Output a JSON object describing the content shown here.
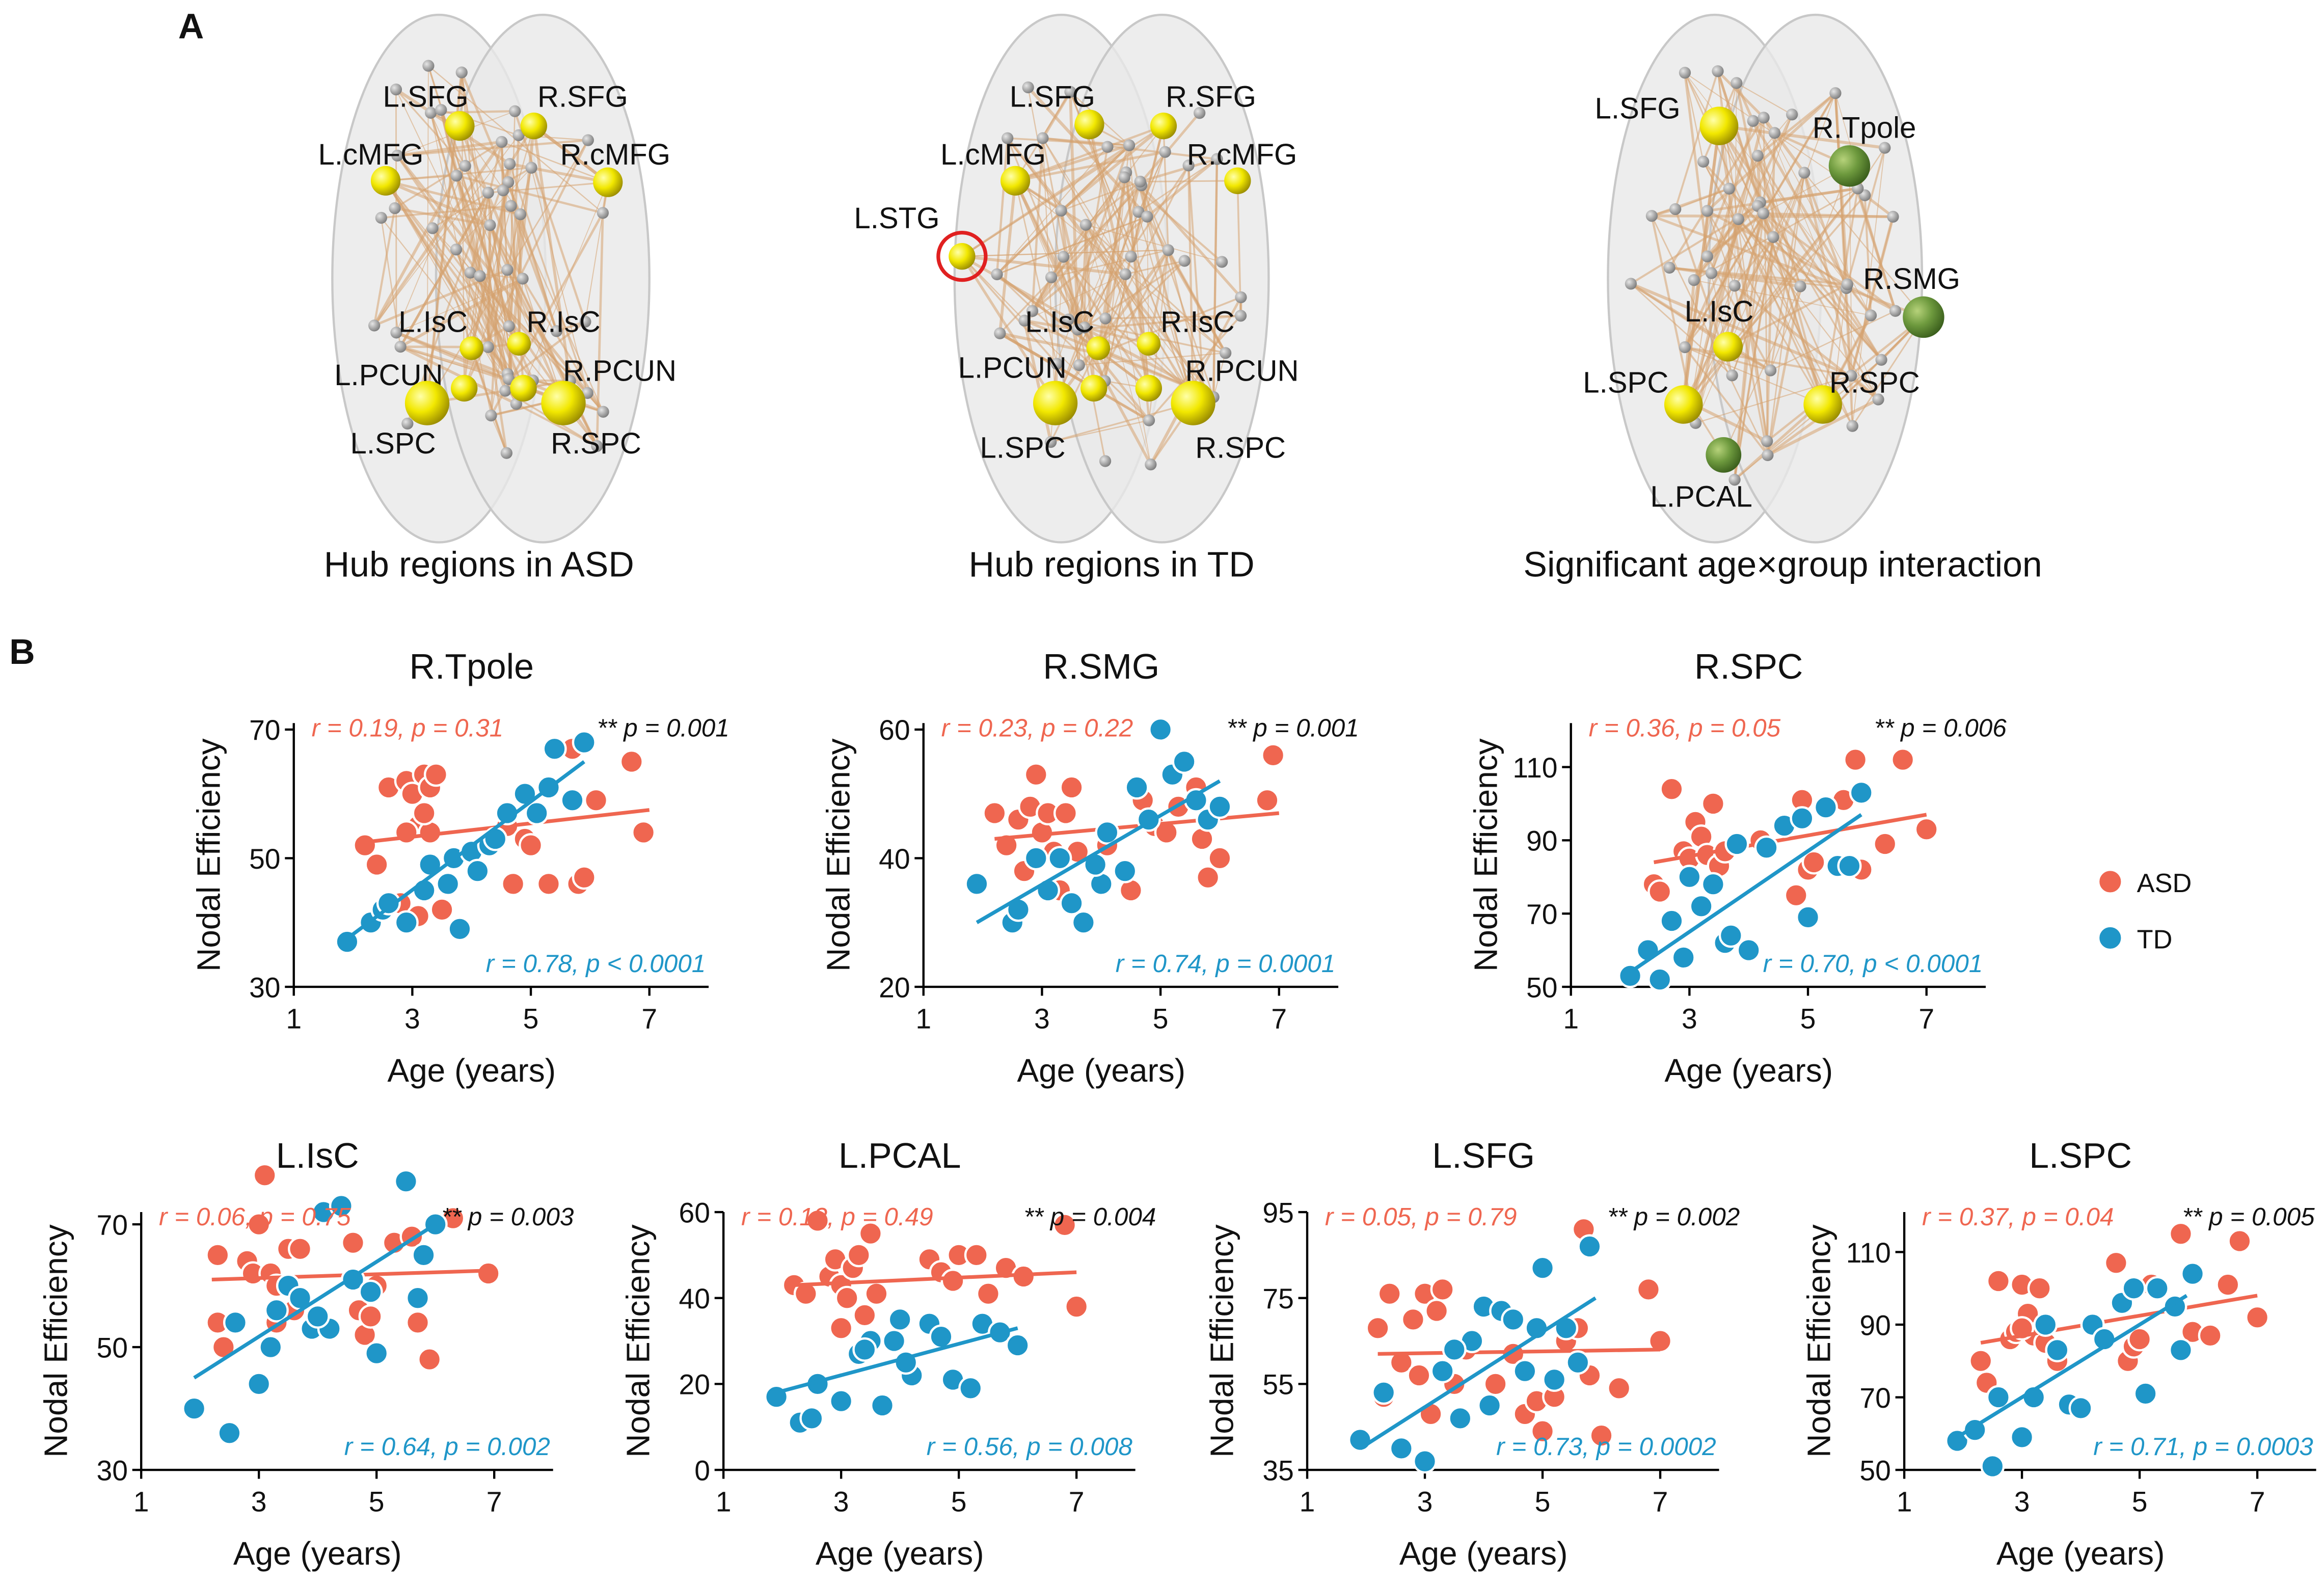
{
  "panels": {
    "a_label": "A",
    "b_label": "B"
  },
  "brains": [
    {
      "caption": "Hub regions in ASD",
      "nodes": [
        "L.SFG",
        "R.SFG",
        "L.cMFG",
        "R.cMFG",
        "L.IsC",
        "R.IsC",
        "L.PCUN",
        "R.PCUN",
        "L.SPC",
        "R.SPC"
      ]
    },
    {
      "caption": "Hub regions in TD",
      "nodes": [
        "L.SFG",
        "R.SFG",
        "L.cMFG",
        "R.cMFG",
        "L.STG",
        "L.IsC",
        "R.IsC",
        "L.PCUN",
        "R.PCUN",
        "L.SPC",
        "R.SPC"
      ]
    },
    {
      "caption": "Significant age×group interaction",
      "nodes": [
        "L.SFG",
        "R.Tpole",
        "R.SMG",
        "L.IsC",
        "L.SPC",
        "R.SPC",
        "L.PCAL"
      ]
    }
  ],
  "chart_data": [
    {
      "type": "scatter",
      "title": "R.Tpole",
      "xlabel": "Age (years)",
      "ylabel": "Nodal Efficiency",
      "xlim": [
        1,
        8
      ],
      "xticks": [
        1,
        3,
        5,
        7
      ],
      "ylim": [
        30,
        71
      ],
      "yticks": [
        30,
        50,
        70
      ],
      "interaction": "** p = 0.001",
      "series": [
        {
          "color": "#ef6650",
          "stat": "r = 0.19, p = 0.31",
          "x": [
            2.2,
            2.4,
            2.6,
            2.9,
            3.0,
            3.1,
            3.2,
            3.3,
            3.4,
            2.9,
            3.3,
            2.8,
            3.5,
            4.6,
            4.7,
            4.9,
            5.0,
            5.3,
            5.7,
            5.8,
            6.1,
            6.7,
            6.9,
            3.1,
            3.2,
            5.9
          ],
          "values": [
            52,
            49,
            61,
            62,
            60,
            55,
            63,
            61,
            63,
            54,
            54,
            43,
            42,
            55,
            46,
            53,
            52,
            46,
            67,
            46,
            59,
            65,
            54,
            41,
            57,
            47
          ],
          "fit_x": [
            2.2,
            7.0
          ],
          "fit_y": [
            52.5,
            57.5
          ]
        },
        {
          "color": "#1f96c8",
          "stat": "r = 0.78, p < 0.0001",
          "x": [
            1.9,
            2.3,
            2.5,
            2.6,
            2.9,
            3.2,
            3.6,
            3.7,
            3.8,
            4.0,
            4.3,
            4.4,
            4.6,
            4.9,
            5.1,
            5.3,
            5.4,
            5.7,
            5.9,
            3.3,
            4.1
          ],
          "values": [
            37,
            40,
            42,
            43,
            40,
            45,
            46,
            50,
            39,
            51,
            52,
            53,
            57,
            60,
            57,
            61,
            67,
            59,
            68,
            49,
            48
          ],
          "fit_x": [
            1.9,
            5.9
          ],
          "fit_y": [
            37.5,
            65
          ]
        }
      ]
    },
    {
      "type": "scatter",
      "title": "R.SMG",
      "xlabel": "Age (years)",
      "ylabel": "Nodal Efficiency",
      "xlim": [
        1,
        8
      ],
      "xticks": [
        1,
        3,
        5,
        7
      ],
      "ylim": [
        20,
        61
      ],
      "yticks": [
        20,
        40,
        60
      ],
      "interaction": "** p = 0.001",
      "series": [
        {
          "color": "#ef6650",
          "stat": "r = 0.23, p = 0.22",
          "x": [
            2.2,
            2.4,
            2.6,
            2.8,
            2.9,
            3.0,
            3.1,
            3.2,
            3.3,
            3.5,
            3.6,
            4.1,
            4.5,
            4.7,
            4.9,
            5.1,
            5.3,
            5.6,
            5.7,
            5.8,
            6.0,
            6.8,
            6.9,
            2.7,
            3.4
          ],
          "values": [
            47,
            42,
            46,
            48,
            53,
            44,
            47,
            41,
            35,
            51,
            41,
            42,
            35,
            49,
            45,
            44,
            48,
            51,
            43,
            37,
            40,
            49,
            56,
            38,
            47
          ],
          "fit_x": [
            2.2,
            7.0
          ],
          "fit_y": [
            43,
            47
          ]
        },
        {
          "color": "#1f96c8",
          "stat": "r = 0.74, p = 0.0001",
          "x": [
            1.9,
            2.5,
            2.6,
            2.9,
            3.1,
            3.3,
            3.5,
            3.7,
            4.0,
            4.1,
            4.4,
            4.6,
            4.8,
            5.0,
            5.2,
            5.4,
            5.6,
            5.8,
            6.0,
            3.9
          ],
          "values": [
            36,
            30,
            32,
            40,
            35,
            40,
            33,
            30,
            36,
            44,
            38,
            51,
            46,
            60,
            53,
            55,
            49,
            46,
            48,
            39
          ],
          "fit_x": [
            1.9,
            6.0
          ],
          "fit_y": [
            30,
            52
          ]
        }
      ]
    },
    {
      "type": "scatter",
      "title": "R.SPC",
      "xlabel": "Age (years)",
      "ylabel": "Nodal Efficiency",
      "xlim": [
        1,
        8
      ],
      "xticks": [
        1,
        3,
        5,
        7
      ],
      "ylim": [
        50,
        122
      ],
      "yticks": [
        50,
        70,
        90,
        110
      ],
      "interaction": "** p = 0.006",
      "legend": "right",
      "series": [
        {
          "name": "ASD",
          "color": "#ef6650",
          "stat": "r = 0.36, p = 0.05",
          "x": [
            2.4,
            2.5,
            2.7,
            2.9,
            3.0,
            3.1,
            3.2,
            3.3,
            3.4,
            3.5,
            3.6,
            4.2,
            4.8,
            4.9,
            5.0,
            5.1,
            5.6,
            5.8,
            5.9,
            6.3,
            6.6,
            7.0,
            3.0
          ],
          "values": [
            78,
            76,
            104,
            87,
            85,
            95,
            91,
            86,
            100,
            83,
            87,
            90,
            75,
            101,
            82,
            84,
            101,
            112,
            82,
            89,
            112,
            93,
            80
          ],
          "fit_x": [
            2.4,
            7.0
          ],
          "fit_y": [
            84,
            97
          ]
        },
        {
          "name": "TD",
          "color": "#1f96c8",
          "stat": "r = 0.70, p < 0.0001",
          "x": [
            2.0,
            2.3,
            2.5,
            2.7,
            2.9,
            3.0,
            3.2,
            3.4,
            3.6,
            3.7,
            3.8,
            4.0,
            4.3,
            4.6,
            4.9,
            5.0,
            5.3,
            5.5,
            5.7,
            5.9
          ],
          "values": [
            53,
            60,
            52,
            68,
            58,
            80,
            72,
            78,
            62,
            64,
            89,
            60,
            88,
            94,
            96,
            69,
            99,
            83,
            83,
            103
          ],
          "fit_x": [
            2.0,
            5.9
          ],
          "fit_y": [
            54,
            97
          ]
        }
      ]
    },
    {
      "type": "scatter",
      "title": "L.IsC",
      "xlabel": "Age (years)",
      "ylabel": "Nodal Efficiency",
      "xlim": [
        1,
        8
      ],
      "xticks": [
        1,
        3,
        5,
        7
      ],
      "ylim": [
        30,
        72
      ],
      "yticks": [
        30,
        50,
        70
      ],
      "interaction": "** p = 0.003",
      "series": [
        {
          "color": "#ef6650",
          "stat": "r = 0.06, p = 0.75",
          "x": [
            2.3,
            2.3,
            2.4,
            2.8,
            2.9,
            3.0,
            3.1,
            3.2,
            3.3,
            3.5,
            3.6,
            3.3,
            4.6,
            4.7,
            4.8,
            4.9,
            5.0,
            5.3,
            5.6,
            5.7,
            5.9,
            6.3,
            6.9,
            3.7
          ],
          "values": [
            65,
            54,
            50,
            64,
            62,
            70,
            78,
            62,
            60,
            66,
            56,
            54,
            67,
            56,
            52,
            55,
            60,
            67,
            68,
            54,
            48,
            71,
            62,
            66
          ],
          "fit_x": [
            2.2,
            7.0
          ],
          "fit_y": [
            61,
            62.5
          ]
        },
        {
          "color": "#1f96c8",
          "stat": "r = 0.64, p = 0.002",
          "x": [
            1.9,
            2.5,
            2.6,
            3.0,
            3.3,
            3.5,
            3.7,
            3.9,
            4.1,
            4.2,
            4.4,
            4.6,
            4.9,
            5.0,
            5.5,
            5.7,
            5.8,
            6.0,
            3.2,
            4.0
          ],
          "values": [
            40,
            36,
            54,
            44,
            56,
            60,
            58,
            53,
            72,
            53,
            73,
            61,
            59,
            49,
            77,
            58,
            65,
            70,
            50,
            55
          ],
          "fit_x": [
            1.9,
            6.0
          ],
          "fit_y": [
            45,
            70
          ]
        }
      ]
    },
    {
      "type": "scatter",
      "title": "L.PCAL",
      "xlabel": "Age (years)",
      "ylabel": "Nodal Efficiency",
      "xlim": [
        1,
        8
      ],
      "xticks": [
        1,
        3,
        5,
        7
      ],
      "ylim": [
        0,
        60
      ],
      "yticks": [
        0,
        20,
        40,
        60
      ],
      "interaction": "** p = 0.004",
      "series": [
        {
          "color": "#ef6650",
          "stat": "r = 0.13, p = 0.49",
          "x": [
            2.2,
            2.4,
            2.6,
            2.8,
            2.9,
            3.0,
            3.1,
            3.2,
            3.3,
            3.5,
            3.4,
            4.5,
            4.7,
            4.9,
            5.0,
            5.3,
            5.5,
            5.8,
            6.1,
            6.8,
            7.0,
            3.0,
            3.6
          ],
          "values": [
            43,
            41,
            58,
            45,
            49,
            43,
            40,
            47,
            50,
            55,
            36,
            49,
            46,
            44,
            50,
            50,
            41,
            47,
            45,
            57,
            38,
            33,
            41
          ],
          "fit_x": [
            2.2,
            7.0
          ],
          "fit_y": [
            43,
            46
          ]
        },
        {
          "color": "#1f96c8",
          "stat": "r = 0.56, p = 0.008",
          "x": [
            1.9,
            2.3,
            2.5,
            2.6,
            3.0,
            3.3,
            3.5,
            3.7,
            3.9,
            4.0,
            4.2,
            4.5,
            4.7,
            4.9,
            5.2,
            5.4,
            5.7,
            6.0,
            3.4,
            4.1
          ],
          "values": [
            17,
            11,
            12,
            20,
            16,
            27,
            30,
            15,
            30,
            35,
            22,
            34,
            31,
            21,
            19,
            34,
            32,
            29,
            28,
            25
          ],
          "fit_x": [
            1.9,
            6.0
          ],
          "fit_y": [
            18,
            33
          ]
        }
      ]
    },
    {
      "type": "scatter",
      "title": "L.SFG",
      "xlabel": "Age (years)",
      "ylabel": "Nodal Efficiency",
      "xlim": [
        1,
        8
      ],
      "xticks": [
        1,
        3,
        5,
        7
      ],
      "ylim": [
        35,
        95
      ],
      "yticks": [
        35,
        55,
        75,
        95
      ],
      "interaction": "** p = 0.002",
      "series": [
        {
          "color": "#ef6650",
          "stat": "r = 0.05, p = 0.79",
          "x": [
            2.2,
            2.3,
            2.4,
            2.6,
            2.8,
            2.9,
            3.0,
            3.1,
            3.2,
            3.3,
            3.5,
            3.7,
            4.2,
            4.5,
            4.7,
            4.9,
            5.0,
            5.2,
            5.4,
            5.6,
            5.7,
            5.8,
            6.0,
            6.3,
            6.8,
            7.0
          ],
          "values": [
            68,
            52,
            76,
            60,
            70,
            57,
            76,
            48,
            72,
            77,
            55,
            63,
            55,
            62,
            48,
            51,
            44,
            52,
            65,
            68,
            91,
            57,
            43,
            54,
            77,
            65
          ],
          "fit_x": [
            2.2,
            7.0
          ],
          "fit_y": [
            62,
            63
          ]
        },
        {
          "color": "#1f96c8",
          "stat": "r = 0.73, p = 0.0002",
          "x": [
            1.9,
            2.3,
            2.6,
            3.0,
            3.3,
            3.6,
            3.8,
            4.0,
            4.3,
            4.5,
            4.7,
            4.9,
            5.0,
            5.2,
            5.4,
            5.6,
            5.8,
            4.1,
            3.5
          ],
          "values": [
            42,
            53,
            40,
            37,
            58,
            47,
            65,
            73,
            72,
            70,
            58,
            68,
            82,
            56,
            68,
            60,
            87,
            50,
            63
          ],
          "fit_x": [
            1.9,
            5.9
          ],
          "fit_y": [
            40,
            75
          ]
        }
      ]
    },
    {
      "type": "scatter",
      "title": "L.SPC",
      "xlabel": "Age (years)",
      "ylabel": "Nodal Efficiency",
      "xlim": [
        1,
        8
      ],
      "xticks": [
        1,
        3,
        5,
        7
      ],
      "ylim": [
        50,
        121
      ],
      "yticks": [
        50,
        70,
        90,
        110
      ],
      "interaction": "** p = 0.005",
      "series": [
        {
          "color": "#ef6650",
          "stat": "r = 0.37, p = 0.04",
          "x": [
            2.3,
            2.4,
            2.6,
            2.8,
            2.9,
            3.0,
            3.1,
            3.2,
            3.3,
            3.4,
            3.6,
            4.6,
            4.8,
            4.9,
            5.0,
            5.2,
            5.7,
            5.9,
            6.2,
            6.5,
            6.7,
            7.0,
            3.0
          ],
          "values": [
            80,
            74,
            102,
            86,
            88,
            101,
            93,
            87,
            100,
            85,
            80,
            107,
            80,
            84,
            86,
            101,
            115,
            88,
            87,
            101,
            113,
            92,
            89
          ],
          "fit_x": [
            2.3,
            7.0
          ],
          "fit_y": [
            85,
            98
          ]
        },
        {
          "color": "#1f96c8",
          "stat": "r = 0.71, p = 0.0003",
          "x": [
            1.9,
            2.2,
            2.5,
            2.6,
            3.0,
            3.2,
            3.4,
            3.6,
            3.8,
            4.0,
            4.2,
            4.4,
            4.7,
            4.9,
            5.1,
            5.3,
            5.6,
            5.7,
            5.9
          ],
          "values": [
            58,
            61,
            51,
            70,
            59,
            70,
            90,
            83,
            68,
            67,
            90,
            86,
            96,
            100,
            71,
            100,
            95,
            83,
            104
          ],
          "fit_x": [
            1.9,
            5.8
          ],
          "fit_y": [
            59,
            98
          ]
        }
      ]
    }
  ]
}
